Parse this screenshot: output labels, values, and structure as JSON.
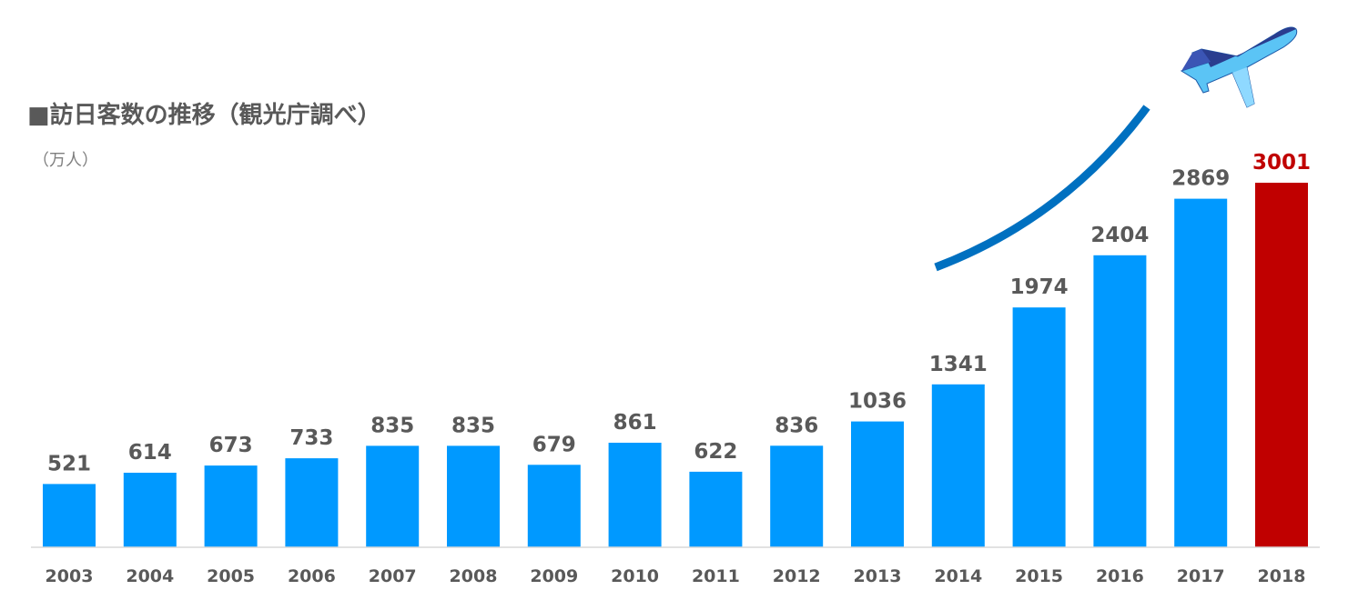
{
  "title": "■訪日客数の推移（観光庁調べ）",
  "unit": "（万人）",
  "colors": {
    "bar": "#0099ff",
    "highlight": "#c00000",
    "trend_arrow": "#0070c0",
    "text": "#595959"
  },
  "chart_data": {
    "type": "bar",
    "title": "■訪日客数の推移（観光庁調べ）",
    "ylabel": "（万人）",
    "categories": [
      "2003",
      "2004",
      "2005",
      "2006",
      "2007",
      "2008",
      "2009",
      "2010",
      "2011",
      "2012",
      "2013",
      "2014",
      "2015",
      "2016",
      "2017",
      "2018"
    ],
    "values": [
      521,
      614,
      673,
      733,
      835,
      835,
      679,
      861,
      622,
      836,
      1036,
      1341,
      1974,
      2404,
      2869,
      3001
    ],
    "highlight_category": "2018",
    "ylim": [
      0,
      3001
    ],
    "grid": false,
    "legend": "none"
  },
  "decorations": {
    "airplane": "airplane-icon",
    "trend_arrow": "upward-curve"
  }
}
